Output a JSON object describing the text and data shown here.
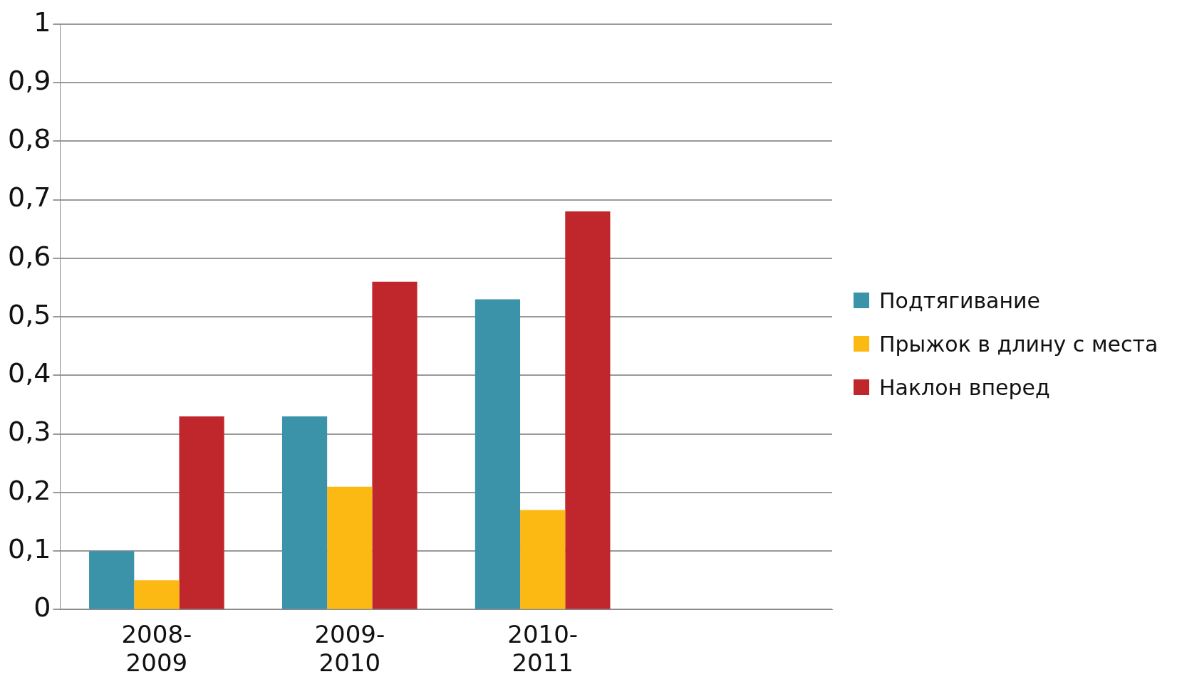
{
  "chart_data": {
    "type": "bar",
    "categories": [
      "2008-2009",
      "2009-2010",
      "2010-2011",
      null
    ],
    "series": [
      {
        "name": "Подтягивание",
        "color": "#3a93a8",
        "values": [
          0.1,
          0.33,
          0.53,
          null
        ]
      },
      {
        "name": "Прыжок в длину с места",
        "color": "#fdb913",
        "values": [
          0.05,
          0.21,
          0.17,
          null
        ]
      },
      {
        "name": "Наклон вперед",
        "color": "#c0272d",
        "values": [
          0.33,
          0.56,
          0.68,
          null
        ]
      }
    ],
    "ylim": [
      0,
      1
    ],
    "yticks": [
      0,
      {
        "value": 0.1,
        "label": "0,1"
      },
      {
        "value": 0.2,
        "label": "0,2"
      },
      {
        "value": 0.3,
        "label": "0,3"
      },
      {
        "value": 0.4,
        "label": "0,4"
      },
      {
        "value": 0.5,
        "label": "0,5"
      },
      {
        "value": 0.6,
        "label": "0,6"
      },
      {
        "value": 0.7,
        "label": "0,7"
      },
      {
        "value": 0.8,
        "label": "0,8"
      },
      {
        "value": 0.9,
        "label": "0,9"
      },
      1
    ],
    "grid": "y",
    "legend": "right"
  }
}
